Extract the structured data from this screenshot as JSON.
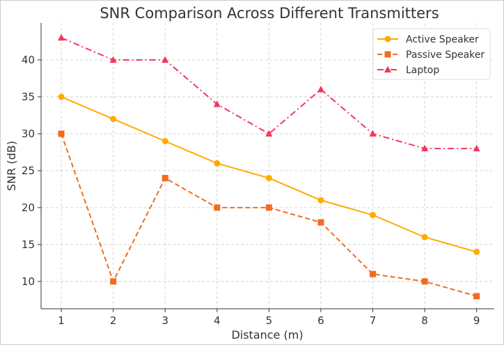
{
  "chart_data": {
    "type": "line",
    "title": "SNR Comparison Across Different Transmitters",
    "xlabel": "Distance (m)",
    "ylabel": "SNR (dB)",
    "x": [
      1,
      2,
      3,
      4,
      5,
      6,
      7,
      8,
      9
    ],
    "xlim": [
      0.61,
      9.34
    ],
    "ylim": [
      6.3,
      45
    ],
    "xticks": [
      1,
      2,
      3,
      4,
      5,
      6,
      7,
      8,
      9
    ],
    "yticks": [
      10,
      15,
      20,
      25,
      30,
      35,
      40
    ],
    "grid": true,
    "legend_position": "top-right",
    "series": [
      {
        "name": "Active Speaker",
        "values": [
          35,
          32,
          29,
          26,
          24,
          21,
          19,
          16,
          14
        ],
        "color": "#FFAA00",
        "marker": "circle",
        "dash": "solid"
      },
      {
        "name": "Passive Speaker",
        "values": [
          30,
          10,
          24,
          20,
          20,
          18,
          11,
          10,
          8
        ],
        "color": "#F26B21",
        "marker": "square",
        "dash": "dashed"
      },
      {
        "name": "Laptop",
        "values": [
          43,
          40,
          40,
          34,
          30,
          36,
          30,
          28,
          28
        ],
        "color": "#F5365C",
        "marker": "triangle",
        "dash": "dashdot"
      }
    ]
  }
}
